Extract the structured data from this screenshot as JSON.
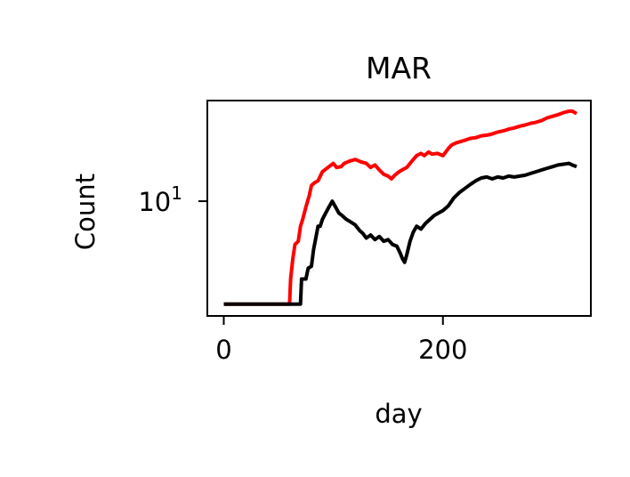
{
  "chart_data": {
    "type": "line",
    "title": "MAR",
    "xlabel": "day",
    "ylabel": "Count",
    "xlim": [
      -15,
      335
    ],
    "ylim": [
      3.6,
      24.5
    ],
    "yscale": "log",
    "grid": false,
    "x_ticks": [
      0,
      200
    ],
    "x_tick_labels": [
      "0",
      "200"
    ],
    "y_ticks": [
      10
    ],
    "y_tick_labels": [
      {
        "base": "10",
        "exp": "1"
      }
    ],
    "series": [
      {
        "color": "#ff0000",
        "points": [
          [
            0,
            4
          ],
          [
            60,
            4
          ],
          [
            61,
            5
          ],
          [
            63,
            6
          ],
          [
            65,
            6.8
          ],
          [
            68,
            7
          ],
          [
            70,
            8
          ],
          [
            72,
            8.5
          ],
          [
            75,
            9.5
          ],
          [
            78,
            10.5
          ],
          [
            80,
            11.5
          ],
          [
            83,
            11.8
          ],
          [
            86,
            12
          ],
          [
            90,
            13
          ],
          [
            95,
            13.5
          ],
          [
            100,
            14
          ],
          [
            103,
            13.5
          ],
          [
            107,
            13.6
          ],
          [
            110,
            14
          ],
          [
            115,
            14.3
          ],
          [
            120,
            14.5
          ],
          [
            125,
            14.2
          ],
          [
            130,
            14
          ],
          [
            134,
            13.5
          ],
          [
            138,
            13.8
          ],
          [
            142,
            13.2
          ],
          [
            146,
            12.7
          ],
          [
            150,
            12.5
          ],
          [
            153,
            12.2
          ],
          [
            156,
            12.6
          ],
          [
            160,
            13
          ],
          [
            164,
            13.3
          ],
          [
            167,
            13.5
          ],
          [
            170,
            14
          ],
          [
            173,
            14.5
          ],
          [
            176,
            15
          ],
          [
            180,
            15.3
          ],
          [
            183,
            15
          ],
          [
            187,
            15.5
          ],
          [
            190,
            15.2
          ],
          [
            195,
            15.3
          ],
          [
            200,
            15
          ],
          [
            205,
            16
          ],
          [
            208,
            16.5
          ],
          [
            212,
            16.8
          ],
          [
            216,
            17
          ],
          [
            220,
            17.2
          ],
          [
            225,
            17.5
          ],
          [
            230,
            17.6
          ],
          [
            235,
            17.9
          ],
          [
            240,
            18
          ],
          [
            245,
            18.2
          ],
          [
            250,
            18.5
          ],
          [
            255,
            18.7
          ],
          [
            260,
            19
          ],
          [
            265,
            19.2
          ],
          [
            270,
            19.5
          ],
          [
            275,
            19.7
          ],
          [
            280,
            20
          ],
          [
            285,
            20.2
          ],
          [
            290,
            20.5
          ],
          [
            295,
            21
          ],
          [
            300,
            21.3
          ],
          [
            305,
            21.6
          ],
          [
            310,
            22
          ],
          [
            315,
            22.3
          ],
          [
            318,
            22.3
          ],
          [
            322,
            21.8
          ]
        ]
      },
      {
        "color": "#000000",
        "points": [
          [
            0,
            4
          ],
          [
            70,
            4
          ],
          [
            71,
            5
          ],
          [
            75,
            5
          ],
          [
            77,
            5.5
          ],
          [
            80,
            5.6
          ],
          [
            82,
            6.5
          ],
          [
            84,
            7.2
          ],
          [
            86,
            8
          ],
          [
            88,
            8
          ],
          [
            90,
            8.5
          ],
          [
            93,
            9
          ],
          [
            96,
            9.5
          ],
          [
            99,
            10
          ],
          [
            102,
            9.5
          ],
          [
            105,
            9
          ],
          [
            108,
            8.8
          ],
          [
            112,
            8.5
          ],
          [
            116,
            8.3
          ],
          [
            120,
            8.1
          ],
          [
            124,
            7.7
          ],
          [
            127,
            7.5
          ],
          [
            130,
            7.2
          ],
          [
            134,
            7.4
          ],
          [
            138,
            7.1
          ],
          [
            142,
            7.3
          ],
          [
            146,
            7
          ],
          [
            150,
            7.1
          ],
          [
            154,
            6.8
          ],
          [
            158,
            6.7
          ],
          [
            161,
            6.3
          ],
          [
            163,
            6
          ],
          [
            165,
            5.8
          ],
          [
            167,
            6.2
          ],
          [
            170,
            7
          ],
          [
            173,
            7.6
          ],
          [
            176,
            8
          ],
          [
            180,
            7.8
          ],
          [
            184,
            8.2
          ],
          [
            188,
            8.5
          ],
          [
            192,
            8.8
          ],
          [
            196,
            9
          ],
          [
            200,
            9.2
          ],
          [
            205,
            9.6
          ],
          [
            210,
            10.3
          ],
          [
            215,
            10.8
          ],
          [
            220,
            11.2
          ],
          [
            225,
            11.6
          ],
          [
            230,
            12
          ],
          [
            235,
            12.3
          ],
          [
            240,
            12.4
          ],
          [
            245,
            12.2
          ],
          [
            250,
            12.4
          ],
          [
            255,
            12.3
          ],
          [
            260,
            12.5
          ],
          [
            265,
            12.4
          ],
          [
            270,
            12.5
          ],
          [
            275,
            12.6
          ],
          [
            280,
            12.8
          ],
          [
            285,
            13
          ],
          [
            290,
            13.2
          ],
          [
            295,
            13.4
          ],
          [
            300,
            13.6
          ],
          [
            305,
            13.8
          ],
          [
            310,
            13.9
          ],
          [
            315,
            14
          ],
          [
            318,
            13.8
          ],
          [
            322,
            13.6
          ]
        ]
      }
    ]
  }
}
